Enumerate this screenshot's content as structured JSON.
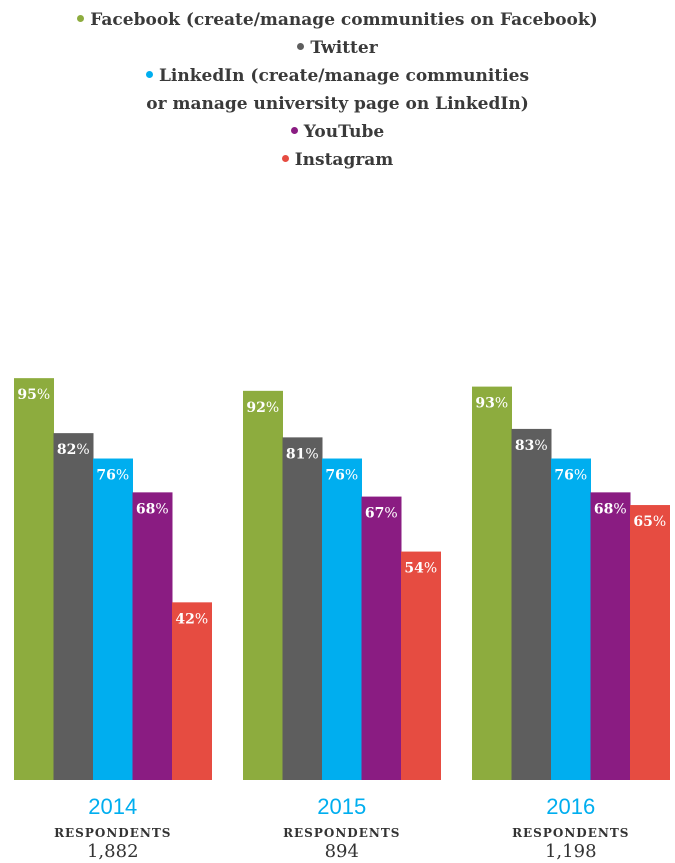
{
  "chart_data": {
    "type": "bar",
    "categories": [
      "2014",
      "2015",
      "2016"
    ],
    "respondents_label": "RESPONDENTS",
    "respondents": [
      "1,882",
      "894",
      "1,198"
    ],
    "unit": "%",
    "ylim": [
      0,
      100
    ],
    "series": [
      {
        "name": "Facebook (create/manage communities on Facebook)",
        "color": "#8dac3e",
        "values": [
          95,
          92,
          93
        ]
      },
      {
        "name": "Twitter",
        "color": "#5e5e5e",
        "values": [
          82,
          81,
          83
        ]
      },
      {
        "name": "LinkedIn (create/manage communities or manage university page on LinkedIn)",
        "color": "#00aeef",
        "values": [
          76,
          76,
          76
        ]
      },
      {
        "name": "YouTube",
        "color": "#8a1c82",
        "values": [
          68,
          67,
          68
        ]
      },
      {
        "name": "Instagram",
        "color": "#e64c41",
        "values": [
          42,
          54,
          65
        ]
      }
    ],
    "legend_placement": "top-center",
    "grid": false
  },
  "legend": {
    "items": [
      {
        "lines": [
          "Facebook (create/manage communities on Facebook)"
        ]
      },
      {
        "lines": [
          "Twitter"
        ]
      },
      {
        "lines": [
          "LinkedIn (create/manage communities",
          "or manage university page on LinkedIn)"
        ]
      },
      {
        "lines": [
          "YouTube"
        ]
      },
      {
        "lines": [
          "Instagram"
        ]
      }
    ]
  }
}
